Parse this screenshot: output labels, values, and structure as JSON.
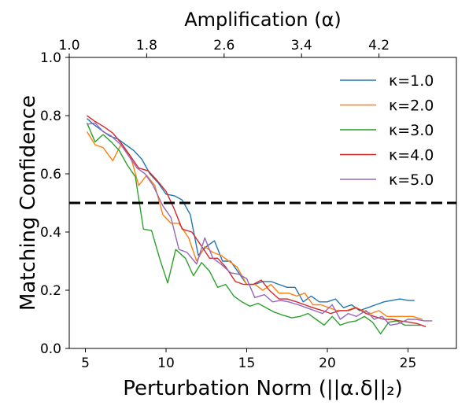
{
  "chart_data": {
    "type": "line",
    "xlabel": "Perturbation Norm (||α.δ||₂)",
    "ylabel": "Matching Confidence",
    "top_xlabel": "Amplification (α)",
    "xlim": [
      4,
      28
    ],
    "ylim": [
      0.0,
      1.0
    ],
    "xticks": [
      "5",
      "10",
      "15",
      "20",
      "25"
    ],
    "xtick_values": [
      5,
      10,
      15,
      20,
      25
    ],
    "yticks": [
      "0.0",
      "0.2",
      "0.4",
      "0.6",
      "0.8",
      "1.0"
    ],
    "ytick_values": [
      0.0,
      0.2,
      0.4,
      0.6,
      0.8,
      1.0
    ],
    "top_xticks": [
      "1.0",
      "1.8",
      "2.6",
      "3.4",
      "4.2"
    ],
    "top_xtick_positions": [
      4,
      8.8,
      13.6,
      18.4,
      23.2
    ],
    "threshold": 0.5,
    "legend_position": "top-right",
    "grid": false,
    "series": [
      {
        "name": "κ=1.0",
        "color": "#1f77b4",
        "x": [
          5.1,
          5.5,
          6.0,
          6.5,
          7.0,
          7.5,
          8.0,
          8.5,
          9.0,
          9.5,
          10.0,
          10.5,
          11.0,
          11.5,
          12.0,
          12.5,
          13.0,
          13.5,
          14.0,
          14.5,
          15.0,
          15.5,
          16.0,
          16.5,
          17.0,
          17.5,
          18.0,
          18.5,
          19.0,
          19.5,
          20.0,
          20.5,
          21.0,
          21.5,
          22.0,
          22.5,
          23.0,
          23.5,
          24.0,
          24.5,
          25.0,
          25.4
        ],
        "y": [
          0.79,
          0.77,
          0.75,
          0.73,
          0.72,
          0.7,
          0.68,
          0.65,
          0.6,
          0.57,
          0.53,
          0.525,
          0.51,
          0.46,
          0.32,
          0.35,
          0.37,
          0.3,
          0.3,
          0.26,
          0.22,
          0.22,
          0.23,
          0.23,
          0.22,
          0.21,
          0.21,
          0.16,
          0.18,
          0.16,
          0.16,
          0.17,
          0.14,
          0.15,
          0.13,
          0.14,
          0.15,
          0.16,
          0.165,
          0.17,
          0.165,
          0.165
        ]
      },
      {
        "name": "κ=2.0",
        "color": "#ff7f0e",
        "x": [
          5.1,
          5.6,
          6.1,
          6.7,
          7.2,
          7.8,
          8.3,
          8.8,
          9.3,
          9.8,
          10.3,
          10.8,
          11.4,
          11.9,
          12.4,
          12.9,
          13.4,
          13.9,
          14.4,
          15.0,
          15.5,
          16.0,
          16.5,
          17.0,
          17.6,
          18.1,
          18.6,
          19.1,
          19.6,
          20.1,
          20.6,
          21.2,
          21.7,
          22.2,
          22.7,
          23.2,
          23.7,
          24.2,
          24.7,
          25.3,
          25.9
        ],
        "y": [
          0.745,
          0.7,
          0.69,
          0.645,
          0.7,
          0.66,
          0.56,
          0.595,
          0.56,
          0.46,
          0.43,
          0.43,
          0.38,
          0.3,
          0.35,
          0.33,
          0.32,
          0.3,
          0.28,
          0.22,
          0.22,
          0.2,
          0.22,
          0.19,
          0.19,
          0.18,
          0.19,
          0.15,
          0.15,
          0.14,
          0.13,
          0.13,
          0.14,
          0.13,
          0.12,
          0.13,
          0.11,
          0.11,
          0.11,
          0.11,
          0.1
        ]
      },
      {
        "name": "κ=3.0",
        "color": "#2ca02c",
        "x": [
          5.1,
          5.6,
          6.1,
          6.6,
          7.1,
          7.6,
          8.1,
          8.6,
          9.1,
          9.6,
          10.1,
          10.6,
          11.2,
          11.7,
          12.2,
          12.7,
          13.2,
          13.7,
          14.2,
          14.7,
          15.2,
          15.7,
          16.2,
          16.7,
          17.2,
          17.8,
          18.3,
          18.8,
          19.3,
          19.8,
          20.3,
          20.8,
          21.3,
          21.8,
          22.3,
          22.8,
          23.3,
          23.8,
          24.3,
          24.8,
          25.3,
          25.8
        ],
        "y": [
          0.775,
          0.71,
          0.735,
          0.71,
          0.68,
          0.63,
          0.59,
          0.41,
          0.405,
          0.31,
          0.225,
          0.34,
          0.31,
          0.25,
          0.295,
          0.265,
          0.21,
          0.22,
          0.18,
          0.16,
          0.145,
          0.155,
          0.14,
          0.125,
          0.115,
          0.105,
          0.11,
          0.12,
          0.1,
          0.08,
          0.11,
          0.08,
          0.09,
          0.095,
          0.11,
          0.09,
          0.05,
          0.09,
          0.095,
          0.08,
          0.08,
          0.08
        ]
      },
      {
        "name": "κ=4.0",
        "color": "#d62728",
        "x": [
          5.1,
          5.6,
          6.2,
          6.7,
          7.3,
          7.8,
          8.3,
          8.9,
          9.4,
          10.0,
          10.5,
          11.0,
          11.6,
          12.1,
          12.7,
          13.2,
          13.7,
          14.3,
          14.8,
          15.4,
          15.9,
          16.4,
          17.0,
          17.5,
          18.1,
          18.6,
          19.1,
          19.7,
          20.2,
          20.8,
          21.3,
          21.8,
          22.4,
          22.9,
          23.5,
          24.0,
          24.5,
          25.1,
          25.6,
          26.1
        ],
        "y": [
          0.8,
          0.78,
          0.76,
          0.74,
          0.7,
          0.66,
          0.62,
          0.61,
          0.58,
          0.54,
          0.48,
          0.41,
          0.4,
          0.36,
          0.31,
          0.31,
          0.28,
          0.23,
          0.22,
          0.22,
          0.235,
          0.2,
          0.17,
          0.17,
          0.16,
          0.15,
          0.14,
          0.13,
          0.12,
          0.13,
          0.13,
          0.14,
          0.12,
          0.11,
          0.1,
          0.1,
          0.095,
          0.09,
          0.085,
          0.075
        ]
      },
      {
        "name": "κ=5.0",
        "color": "#9467bd",
        "x": [
          5.1,
          5.6,
          6.1,
          6.6,
          7.2,
          7.7,
          8.2,
          8.7,
          9.2,
          9.8,
          10.3,
          10.8,
          11.3,
          11.9,
          12.4,
          12.9,
          13.4,
          14.0,
          14.5,
          15.0,
          15.5,
          16.1,
          16.6,
          17.1,
          17.6,
          18.2,
          18.7,
          19.2,
          19.7,
          20.3,
          20.8,
          21.3,
          21.8,
          22.4,
          22.9,
          23.4,
          23.9,
          24.4,
          25.0,
          25.5,
          26.0,
          26.5
        ],
        "y": [
          0.77,
          0.775,
          0.745,
          0.73,
          0.7,
          0.66,
          0.62,
          0.6,
          0.56,
          0.49,
          0.45,
          0.34,
          0.33,
          0.29,
          0.38,
          0.31,
          0.29,
          0.26,
          0.255,
          0.24,
          0.175,
          0.185,
          0.16,
          0.165,
          0.16,
          0.15,
          0.14,
          0.13,
          0.12,
          0.15,
          0.1,
          0.12,
          0.11,
          0.13,
          0.1,
          0.11,
          0.08,
          0.085,
          0.1,
          0.1,
          0.095,
          0.095
        ]
      }
    ]
  }
}
